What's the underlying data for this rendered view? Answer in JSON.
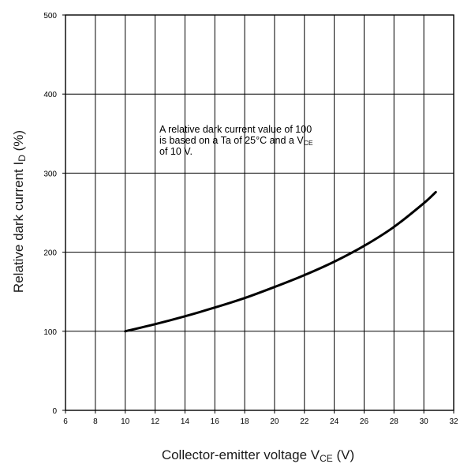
{
  "chart_data": {
    "type": "line",
    "xlabel": "Collector-emitter voltage V",
    "xlabel_sub": "CE",
    "xlabel_unit": " (V)",
    "ylabel": "Relative dark current I",
    "ylabel_sub": "D",
    "ylabel_unit": " (%)",
    "xlim": [
      6,
      32
    ],
    "ylim": [
      0,
      500
    ],
    "x_ticks": [
      "6",
      "8",
      "10",
      "12",
      "14",
      "16",
      "18",
      "20",
      "22",
      "24",
      "26",
      "28",
      "30",
      "32"
    ],
    "y_ticks": [
      "0",
      "100",
      "200",
      "300",
      "400",
      "500"
    ],
    "grid": true,
    "annotation": {
      "line1": "A relative dark current value of 100",
      "line2_pre": "is based on a Ta of 25°C and a V",
      "line2_sub": "CE",
      "line3": "of 10 V."
    },
    "series": [
      {
        "x": [
          10,
          12,
          14,
          16,
          18,
          20,
          22,
          24,
          26,
          28,
          30,
          30.8
        ],
        "y": [
          100,
          109,
          119,
          130,
          142,
          156,
          171,
          188,
          208,
          232,
          262,
          276
        ]
      }
    ]
  }
}
